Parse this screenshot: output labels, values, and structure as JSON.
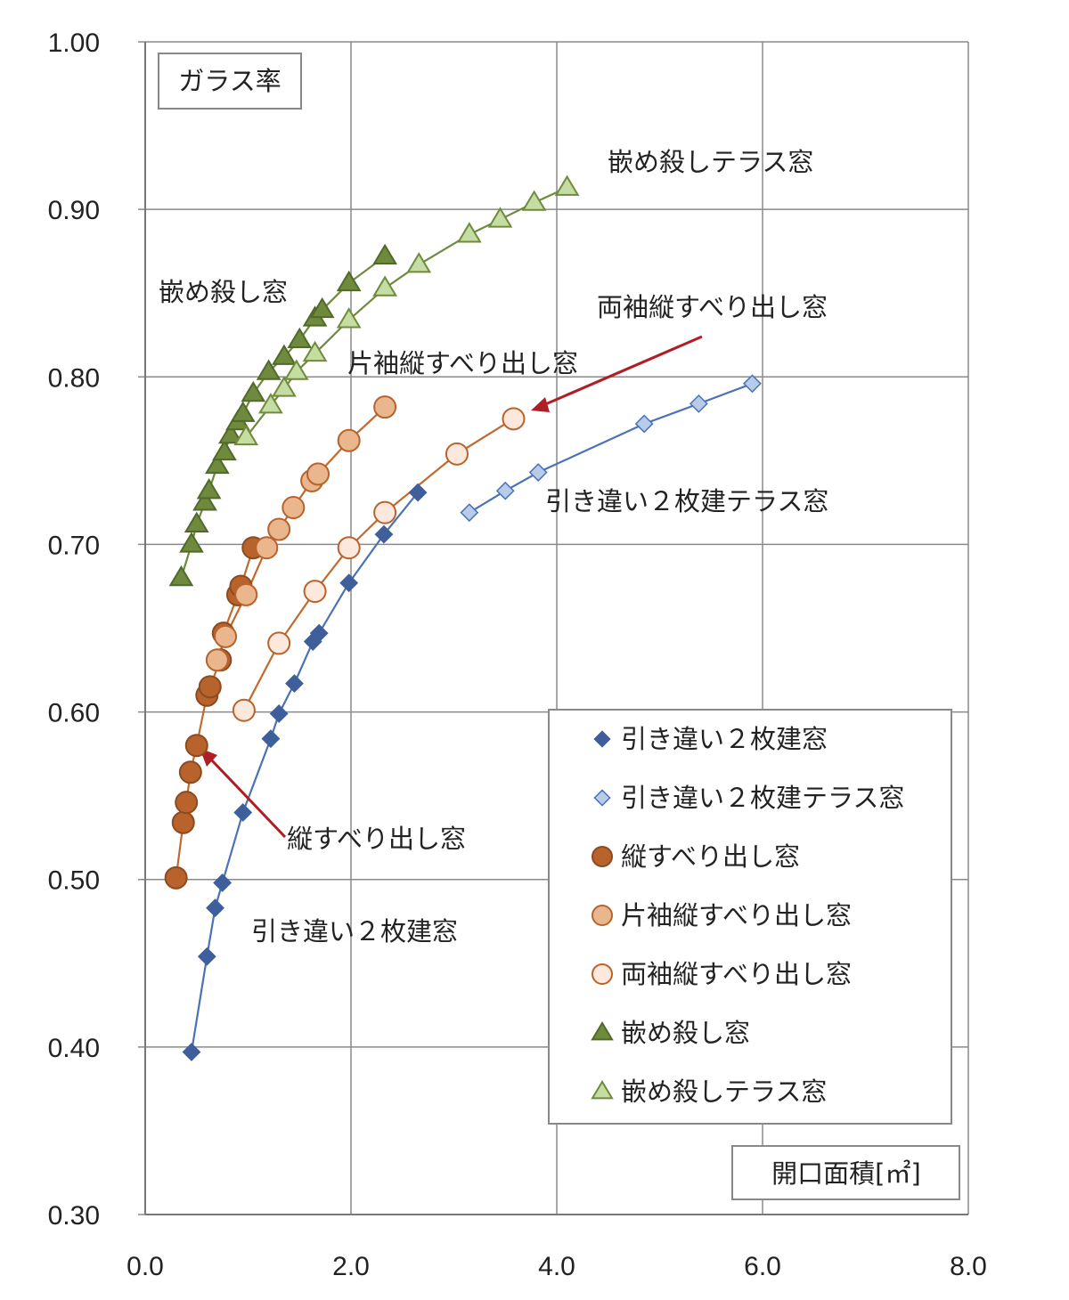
{
  "chart_data": {
    "type": "scatter",
    "ylabel": "ガラス率",
    "xlabel": "開口面積[㎡]",
    "xlim": [
      0,
      8
    ],
    "ylim": [
      0.3,
      1.0
    ],
    "x_ticks": [
      "0.0",
      "2.0",
      "4.0",
      "6.0",
      "8.0"
    ],
    "y_ticks": [
      "0.30",
      "0.40",
      "0.50",
      "0.60",
      "0.70",
      "0.80",
      "0.90",
      "1.00"
    ],
    "grid": true,
    "legend_position": "bottom-right",
    "series": [
      {
        "name": "引き違い２枚建窓",
        "marker": "diamond",
        "fill": "#3f5f9c",
        "stroke": "#3f5f9c",
        "line": "#4a72b8",
        "points": [
          [
            0.45,
            0.397
          ],
          [
            0.6,
            0.454
          ],
          [
            0.68,
            0.483
          ],
          [
            0.75,
            0.498
          ],
          [
            0.95,
            0.54
          ],
          [
            1.22,
            0.584
          ],
          [
            1.3,
            0.599
          ],
          [
            1.45,
            0.617
          ],
          [
            1.63,
            0.642
          ],
          [
            1.69,
            0.647
          ],
          [
            1.98,
            0.677
          ],
          [
            2.32,
            0.706
          ],
          [
            2.65,
            0.731
          ]
        ]
      },
      {
        "name": "引き違い２枚建テラス窓",
        "marker": "diamond",
        "fill": "#b8cbe8",
        "stroke": "#4a72b8",
        "line": "#4a72b8",
        "points": [
          [
            3.15,
            0.719
          ],
          [
            3.5,
            0.732
          ],
          [
            3.82,
            0.743
          ],
          [
            4.85,
            0.772
          ],
          [
            5.38,
            0.784
          ],
          [
            5.9,
            0.796
          ]
        ]
      },
      {
        "name": "縦すべり出し窓",
        "marker": "circle",
        "fill": "#b8632c",
        "stroke": "#8c4a1f",
        "line": "#c06a2e",
        "points": [
          [
            0.3,
            0.501
          ],
          [
            0.37,
            0.534
          ],
          [
            0.4,
            0.546
          ],
          [
            0.44,
            0.564
          ],
          [
            0.5,
            0.58
          ],
          [
            0.6,
            0.61
          ],
          [
            0.63,
            0.615
          ],
          [
            0.73,
            0.631
          ],
          [
            0.76,
            0.647
          ],
          [
            0.9,
            0.67
          ],
          [
            0.93,
            0.675
          ],
          [
            1.05,
            0.698
          ]
        ]
      },
      {
        "name": "片袖縦すべり出し窓",
        "marker": "circle",
        "fill": "#eab68e",
        "stroke": "#b8632c",
        "line": "#c06a2e",
        "points": [
          [
            0.7,
            0.631
          ],
          [
            0.78,
            0.645
          ],
          [
            0.98,
            0.67
          ],
          [
            1.18,
            0.698
          ],
          [
            1.3,
            0.709
          ],
          [
            1.44,
            0.722
          ],
          [
            1.62,
            0.738
          ],
          [
            1.68,
            0.742
          ],
          [
            1.98,
            0.762
          ],
          [
            2.33,
            0.782
          ]
        ]
      },
      {
        "name": "両袖縦すべり出し窓",
        "marker": "circle",
        "fill": "#fce8dc",
        "stroke": "#b8632c",
        "line": "#c06a2e",
        "points": [
          [
            0.96,
            0.601
          ],
          [
            1.3,
            0.641
          ],
          [
            1.65,
            0.672
          ],
          [
            1.98,
            0.698
          ],
          [
            2.33,
            0.719
          ],
          [
            3.03,
            0.754
          ],
          [
            3.58,
            0.775
          ]
        ]
      },
      {
        "name": "嵌め殺し窓",
        "marker": "triangle",
        "fill": "#6f8a3c",
        "stroke": "#4f6a2a",
        "line": "#6f8a3c",
        "points": [
          [
            0.35,
            0.68
          ],
          [
            0.45,
            0.7
          ],
          [
            0.5,
            0.712
          ],
          [
            0.58,
            0.725
          ],
          [
            0.62,
            0.732
          ],
          [
            0.7,
            0.747
          ],
          [
            0.77,
            0.755
          ],
          [
            0.83,
            0.765
          ],
          [
            0.9,
            0.773
          ],
          [
            0.95,
            0.778
          ],
          [
            1.05,
            0.79
          ],
          [
            1.2,
            0.803
          ],
          [
            1.35,
            0.812
          ],
          [
            1.5,
            0.822
          ],
          [
            1.65,
            0.835
          ],
          [
            1.72,
            0.84
          ],
          [
            1.98,
            0.856
          ],
          [
            2.33,
            0.872
          ]
        ]
      },
      {
        "name": "嵌め殺しテラス窓",
        "marker": "triangle",
        "fill": "#c5dca3",
        "stroke": "#6f8a3c",
        "line": "#6f8a3c",
        "points": [
          [
            0.98,
            0.764
          ],
          [
            1.22,
            0.783
          ],
          [
            1.35,
            0.793
          ],
          [
            1.47,
            0.803
          ],
          [
            1.65,
            0.814
          ],
          [
            1.98,
            0.834
          ],
          [
            2.33,
            0.853
          ],
          [
            2.66,
            0.867
          ],
          [
            3.15,
            0.885
          ],
          [
            3.45,
            0.894
          ],
          [
            3.78,
            0.904
          ],
          [
            4.1,
            0.913
          ]
        ]
      }
    ],
    "annotations": {
      "fix": "嵌め殺し窓",
      "fix_terrace": "嵌め殺しテラス窓",
      "double_casement": "両袖縦すべり出し窓",
      "single_casement": "片袖縦すべり出し窓",
      "sliding_terrace": "引き違い２枚建テラス窓",
      "casement": "縦すべり出し窓",
      "sliding": "引き違い２枚建窓"
    }
  }
}
